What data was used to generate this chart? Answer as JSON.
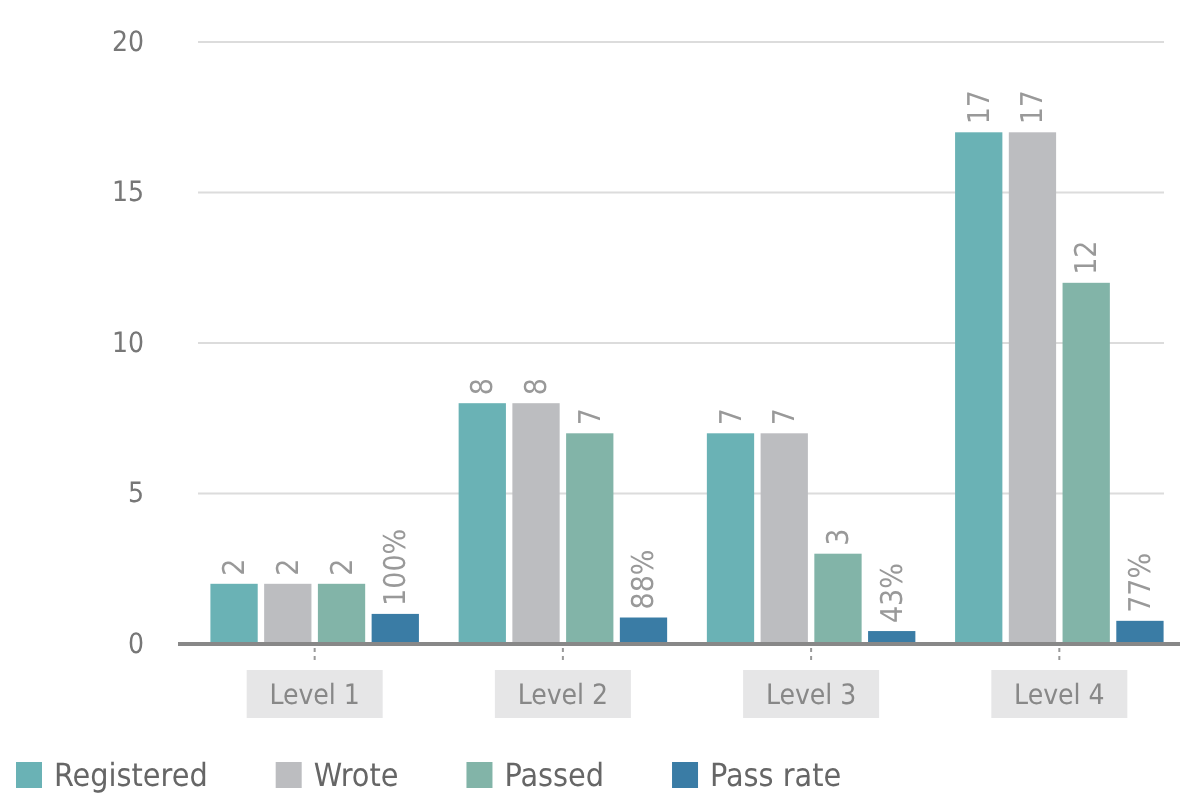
{
  "chart_data": {
    "type": "bar",
    "categories": [
      "Level 1",
      "Level 2",
      "Level 3",
      "Level 4"
    ],
    "series": [
      {
        "name": "Registered",
        "color": "#6ab2b5",
        "values": [
          2,
          8,
          7,
          17
        ],
        "value_labels": [
          "2",
          "8",
          "7",
          "17"
        ]
      },
      {
        "name": "Wrote",
        "color": "#bcbdc0",
        "values": [
          2,
          8,
          7,
          17
        ],
        "value_labels": [
          "2",
          "8",
          "7",
          "17"
        ]
      },
      {
        "name": "Passed",
        "color": "#82b4a8",
        "values": [
          2,
          7,
          3,
          12
        ],
        "value_labels": [
          "2",
          "7",
          "3",
          "12"
        ]
      },
      {
        "name": "Pass rate",
        "color": "#3a7ca5",
        "values": [
          1,
          0.88,
          0.43,
          0.77
        ],
        "value_labels": [
          "100%",
          "88%",
          "43%",
          "77%"
        ]
      }
    ],
    "ylim": [
      0,
      20
    ],
    "yticks": [
      0,
      5,
      10,
      15,
      20
    ],
    "grid": "y",
    "legend": "bottom"
  }
}
